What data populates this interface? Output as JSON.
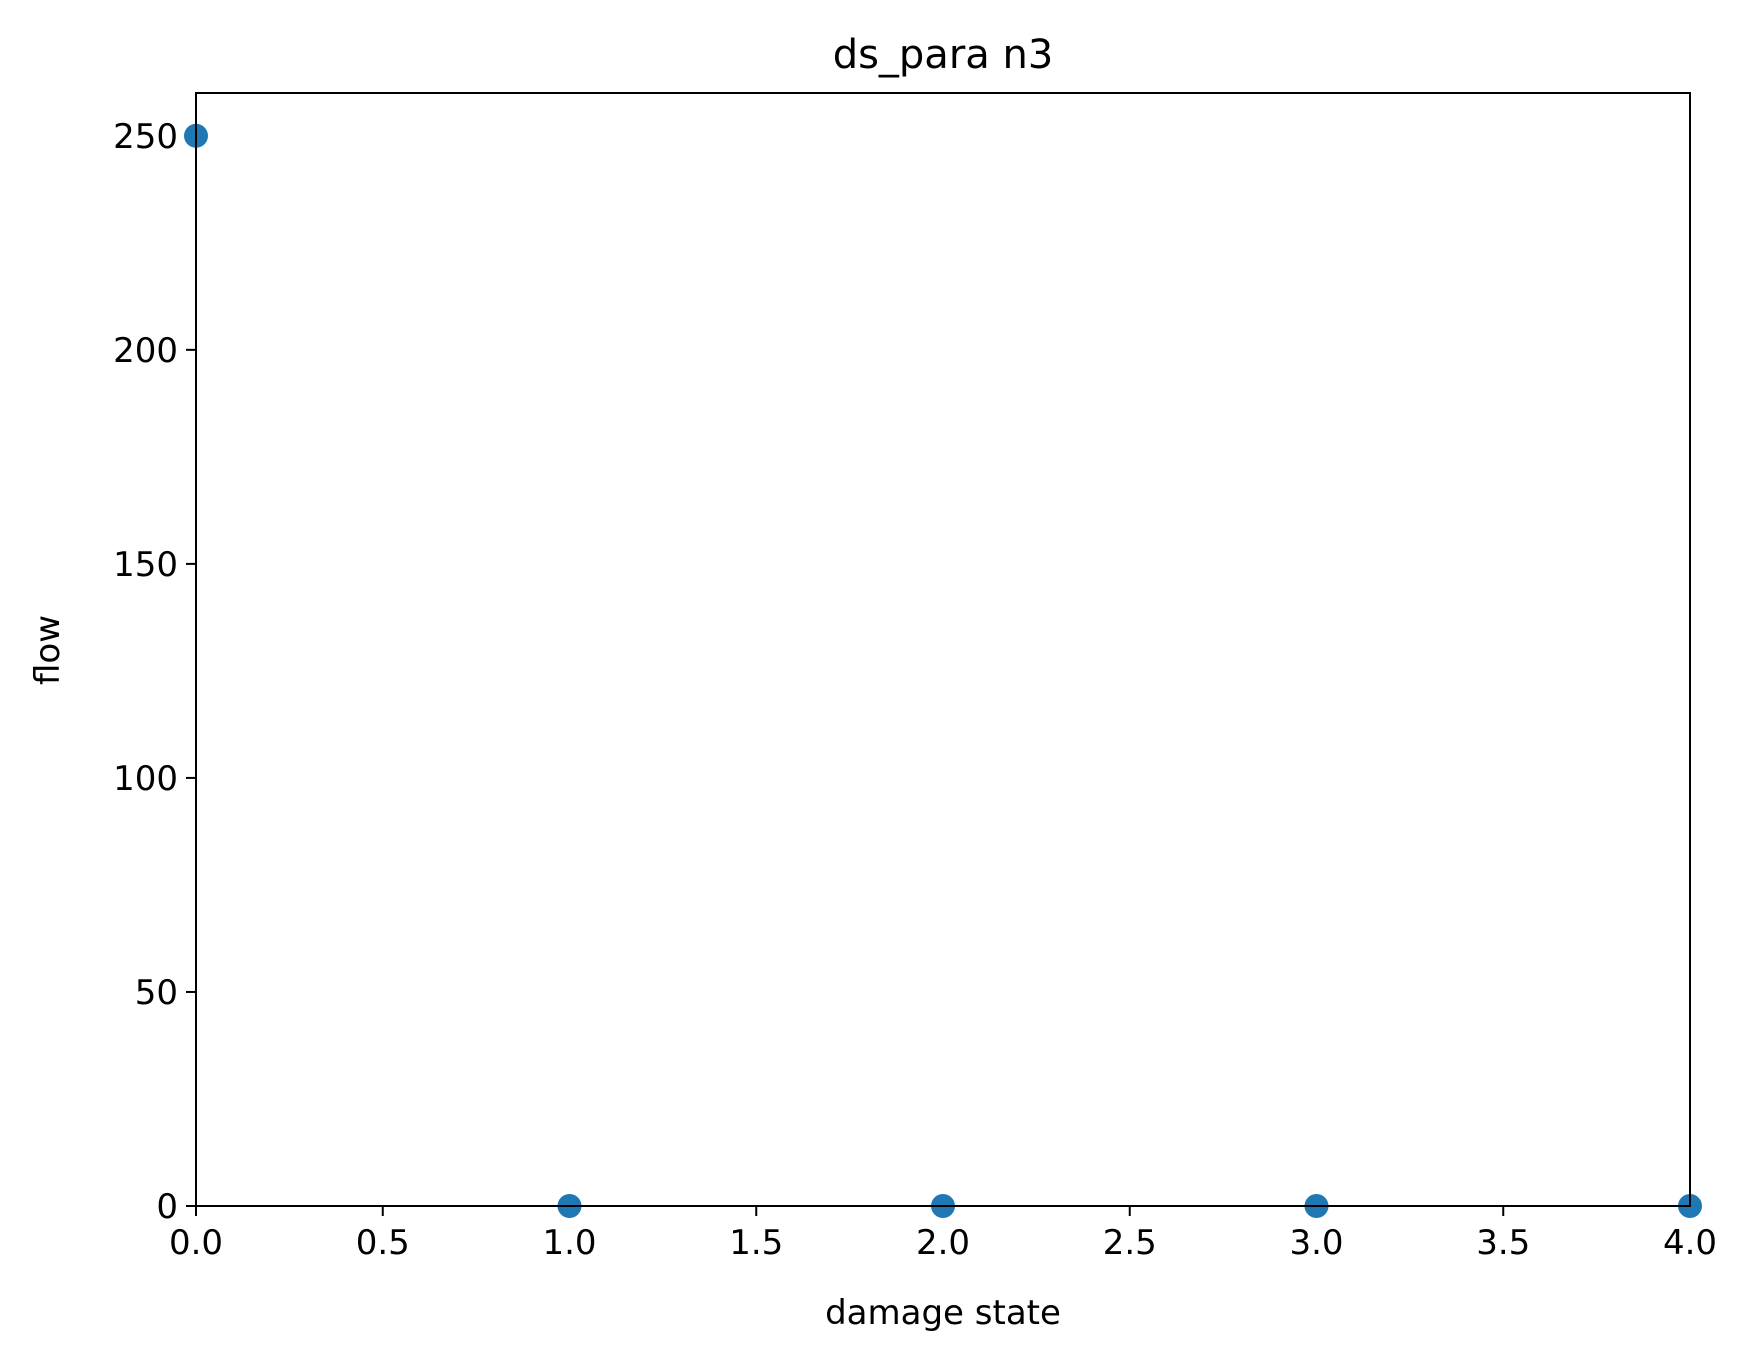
{
  "chart_data": {
    "type": "scatter",
    "title": "ds_para n3",
    "xlabel": "damage state",
    "ylabel": "flow",
    "xlim": [
      0,
      4
    ],
    "ylim": [
      0,
      260
    ],
    "xticks": [
      0.0,
      0.5,
      1.0,
      1.5,
      2.0,
      2.5,
      3.0,
      3.5,
      4.0
    ],
    "xtick_labels": [
      "0.0",
      "0.5",
      "1.0",
      "1.5",
      "2.0",
      "2.5",
      "3.0",
      "3.5",
      "4.0"
    ],
    "yticks": [
      0,
      50,
      100,
      150,
      200,
      250
    ],
    "ytick_labels": [
      "0",
      "50",
      "100",
      "150",
      "200",
      "250"
    ],
    "grid": false,
    "series": [
      {
        "x": [
          0,
          1,
          2,
          3,
          4
        ],
        "y": [
          250,
          0,
          0,
          0,
          0
        ],
        "color": "#1f77b4"
      }
    ]
  }
}
